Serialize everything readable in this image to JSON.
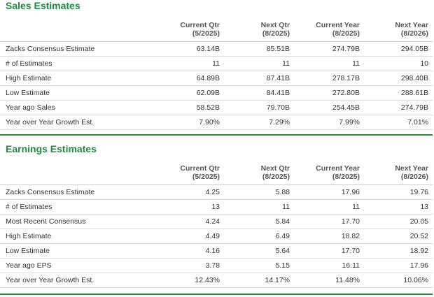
{
  "sales": {
    "title": "Sales Estimates",
    "columns": [
      {
        "label": "Current Qtr",
        "date": "(5/2025)"
      },
      {
        "label": "Next Qtr",
        "date": "(8/2025)"
      },
      {
        "label": "Current Year",
        "date": "(8/2025)"
      },
      {
        "label": "Next Year",
        "date": "(8/2026)"
      }
    ],
    "rows": [
      {
        "label": "Zacks Consensus Estimate",
        "values": [
          "63.14B",
          "85.51B",
          "274.79B",
          "294.05B"
        ]
      },
      {
        "label": "# of Estimates",
        "values": [
          "11",
          "11",
          "11",
          "10"
        ]
      },
      {
        "label": "High Estimate",
        "values": [
          "64.89B",
          "87.41B",
          "278.17B",
          "298.40B"
        ]
      },
      {
        "label": "Low Estimate",
        "values": [
          "62.09B",
          "84.41B",
          "272.80B",
          "288.61B"
        ]
      },
      {
        "label": "Year ago Sales",
        "values": [
          "58.52B",
          "79.70B",
          "254.45B",
          "274.79B"
        ]
      },
      {
        "label": "Year over Year Growth Est.",
        "values": [
          "7.90%",
          "7.29%",
          "7.99%",
          "7.01%"
        ]
      }
    ]
  },
  "earnings": {
    "title": "Earnings Estimates",
    "columns": [
      {
        "label": "Current Qtr",
        "date": "(5/2025)"
      },
      {
        "label": "Next Qtr",
        "date": "(8/2025)"
      },
      {
        "label": "Current Year",
        "date": "(8/2025)"
      },
      {
        "label": "Next Year",
        "date": "(8/2026)"
      }
    ],
    "rows": [
      {
        "label": "Zacks Consensus Estimate",
        "values": [
          "4.25",
          "5.88",
          "17.96",
          "19.76"
        ]
      },
      {
        "label": "# of Estimates",
        "values": [
          "13",
          "11",
          "11",
          "13"
        ]
      },
      {
        "label": "Most Recent Consensus",
        "values": [
          "4.24",
          "5.84",
          "17.70",
          "20.05"
        ]
      },
      {
        "label": "High Estimate",
        "values": [
          "4.49",
          "6.49",
          "18.82",
          "20.52"
        ]
      },
      {
        "label": "Low Estimate",
        "values": [
          "4.16",
          "5.64",
          "17.70",
          "18.92"
        ]
      },
      {
        "label": "Year ago EPS",
        "values": [
          "3.78",
          "5.15",
          "16.11",
          "17.96"
        ]
      },
      {
        "label": "Year over Year Growth Est.",
        "values": [
          "12.43%",
          "14.17%",
          "11.48%",
          "10.06%"
        ]
      }
    ]
  }
}
